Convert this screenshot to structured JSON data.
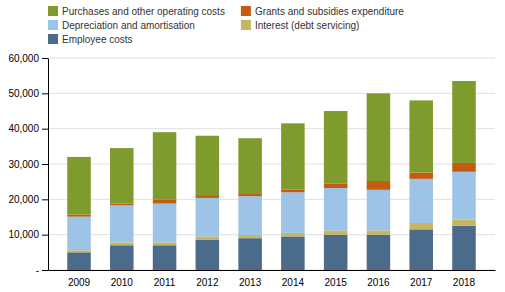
{
  "chart_data": {
    "type": "bar",
    "stacked": true,
    "categories": [
      "2009",
      "2010",
      "2011",
      "2012",
      "2013",
      "2014",
      "2015",
      "2016",
      "2017",
      "2018"
    ],
    "series": [
      {
        "name": "Employee costs",
        "color": "#4a6b8a",
        "values": [
          5000,
          7000,
          7000,
          8500,
          9000,
          9500,
          10000,
          10000,
          11500,
          12500
        ]
      },
      {
        "name": "Interest (debt servicing)",
        "color": "#c8b560",
        "values": [
          600,
          800,
          800,
          900,
          900,
          1000,
          1200,
          1200,
          1800,
          1800
        ]
      },
      {
        "name": "Depreciation and amortisation",
        "color": "#9dc3e6",
        "values": [
          9500,
          10500,
          11000,
          11000,
          11000,
          11500,
          12000,
          11500,
          12500,
          13500
        ]
      },
      {
        "name": "Grants and subsidies expenditure",
        "color": "#c55a11",
        "values": [
          600,
          500,
          1200,
          800,
          600,
          800,
          1200,
          2500,
          1800,
          2500
        ]
      },
      {
        "name": "Purchases and other operating costs",
        "color": "#7f9b2e",
        "values": [
          16300,
          15700,
          19000,
          16800,
          15800,
          18700,
          20600,
          24800,
          20400,
          23200
        ]
      }
    ],
    "ylim": [
      0,
      60000
    ],
    "yticks": [
      {
        "value": 0,
        "label": "-"
      },
      {
        "value": 10000,
        "label": "10,000"
      },
      {
        "value": 20000,
        "label": "20,000"
      },
      {
        "value": 30000,
        "label": "30,000"
      },
      {
        "value": 40000,
        "label": "40,000"
      },
      {
        "value": 50000,
        "label": "50,000"
      },
      {
        "value": 60000,
        "label": "60,000"
      }
    ],
    "grid": true,
    "legend": "top"
  }
}
